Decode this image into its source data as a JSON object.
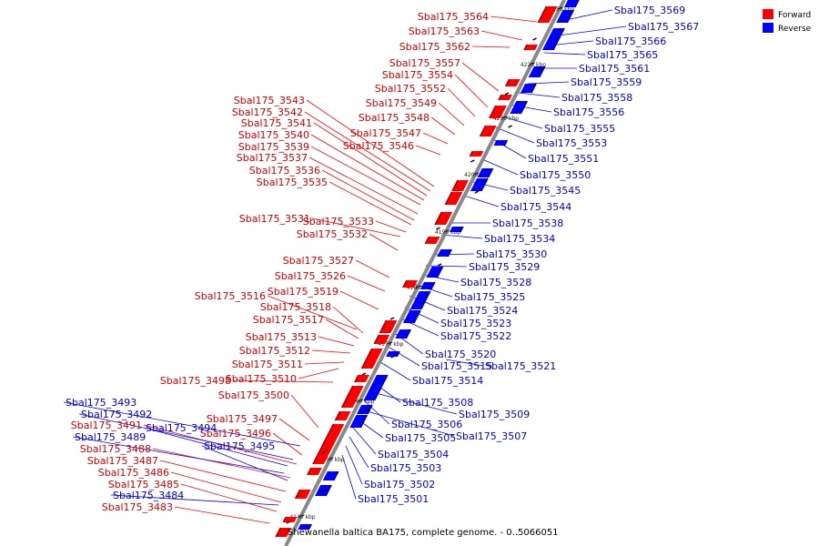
{
  "caption": "Shewanella baltica BA175, complete genome. - 0..5066051",
  "legend": [
    {
      "label": "Forward",
      "color": "#ff0000"
    },
    {
      "label": "Reverse",
      "color": "#0000ff"
    }
  ],
  "colors": {
    "forward": "#ff0000",
    "reverse": "#0000ff",
    "forward_label": "#cc0000",
    "reverse_label": "#0000cc",
    "backbone": "#888888"
  },
  "ticks": [
    "4140 kbp",
    "4150 kbp",
    "4160 kbp",
    "4170 kbp",
    "4180 kbp",
    "4190 kbp",
    "4200 kbp",
    "4210 kbp",
    "4220 kbp",
    "4230 kbp"
  ],
  "forward_genes": [
    "Sbal175_3564",
    "Sbal175_3563",
    "Sbal175_3562",
    "Sbal175_3557",
    "Sbal175_3554",
    "Sbal175_3552",
    "Sbal175_3549",
    "Sbal175_3548",
    "Sbal175_3547",
    "Sbal175_3546",
    "Sbal175_3543",
    "Sbal175_3542",
    "Sbal175_3541",
    "Sbal175_3540",
    "Sbal175_3539",
    "Sbal175_3537",
    "Sbal175_3536",
    "Sbal175_3535",
    "Sbal175_3531",
    "Sbal175_3533",
    "Sbal175_3532",
    "Sbal175_3527",
    "Sbal175_3526",
    "Sbal175_3519",
    "Sbal175_3516",
    "Sbal175_3518",
    "Sbal175_3517",
    "Sbal175_3513",
    "Sbal175_3512",
    "Sbal175_3511",
    "Sbal175_3510",
    "Sbal175_3498",
    "Sbal175_3500",
    "Sbal175_3497",
    "Sbal175_3496",
    "Sbal175_3491",
    "Sbal175_3488",
    "Sbal175_3487",
    "Sbal175_3486",
    "Sbal175_3485",
    "Sbal175_3483"
  ],
  "reverse_genes": [
    "Sbal175_3569",
    "Sbal175_3567",
    "Sbal175_3566",
    "Sbal175_3565",
    "Sbal175_3561",
    "Sbal175_3559",
    "Sbal175_3558",
    "Sbal175_3556",
    "Sbal175_3555",
    "Sbal175_3553",
    "Sbal175_3551",
    "Sbal175_3550",
    "Sbal175_3545",
    "Sbal175_3544",
    "Sbal175_3538",
    "Sbal175_3534",
    "Sbal175_3530",
    "Sbal175_3529",
    "Sbal175_3528",
    "Sbal175_3525",
    "Sbal175_3524",
    "Sbal175_3523",
    "Sbal175_3522",
    "Sbal175_3520",
    "Sbal175_3515",
    "Sbal175_3521",
    "Sbal175_3514",
    "Sbal175_3508",
    "Sbal175_3509",
    "Sbal175_3506",
    "Sbal175_3507",
    "Sbal175_3505",
    "Sbal175_3504",
    "Sbal175_3503",
    "Sbal175_3502",
    "Sbal175_3501",
    "Sbal175_3493",
    "Sbal175_3492",
    "Sbal175_3494",
    "Sbal175_3489",
    "Sbal175_3495",
    "Sbal175_3484"
  ]
}
